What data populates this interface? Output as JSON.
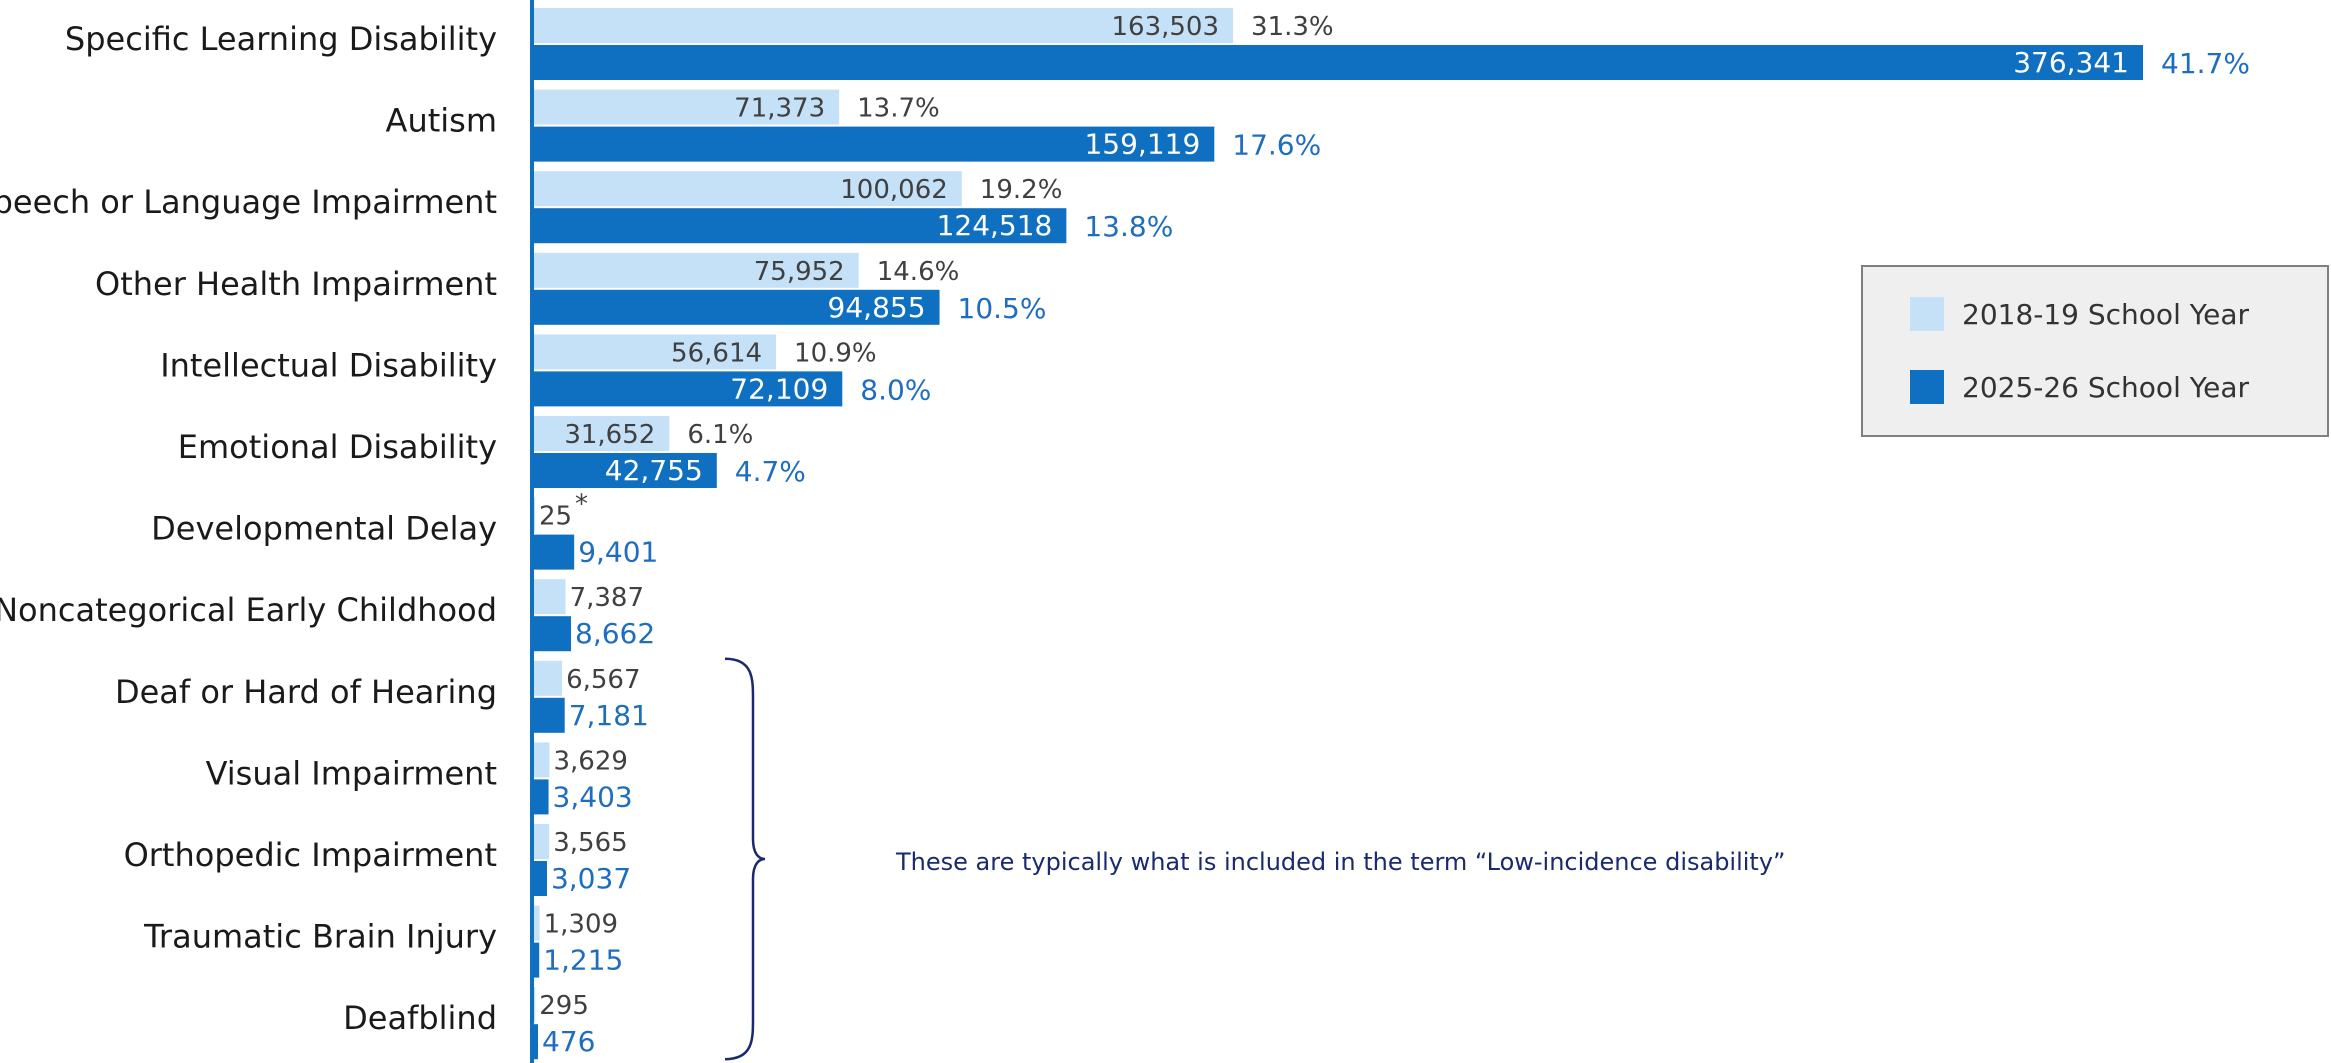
{
  "chart_data": {
    "type": "bar",
    "orientation": "horizontal",
    "categories": [
      "Specific Learning Disability",
      "Autism",
      "Speech or Language Impairment",
      "Other Health Impairment",
      "Intellectual Disability",
      "Emotional Disability",
      "Developmental Delay",
      "Noncategorical Early Childhood",
      "Deaf or Hard of Hearing",
      "Visual Impairment",
      "Orthopedic Impairment",
      "Traumatic Brain Injury",
      "Deafblind"
    ],
    "series": [
      {
        "name": "2018-19 School Year",
        "color": "#c5e1f8",
        "values": [
          163503,
          71373,
          100062,
          75952,
          56614,
          31652,
          25,
          7387,
          6567,
          3629,
          3565,
          1309,
          295
        ],
        "value_labels": [
          "163,503",
          "71,373",
          "100,062",
          "75,952",
          "56,614",
          "31,652",
          "25",
          "7,387",
          "6,567",
          "3,629",
          "3,565",
          "1,309",
          "295"
        ],
        "pct_labels": [
          "31.3%",
          "13.7%",
          "19.2%",
          "14.6%",
          "10.9%",
          "6.1%",
          "",
          "",
          "",
          "",
          "",
          "",
          ""
        ]
      },
      {
        "name": "2025-26 School Year",
        "color": "#0f6fc0",
        "values": [
          376341,
          159119,
          124518,
          94855,
          72109,
          42755,
          9401,
          8662,
          7181,
          3403,
          3037,
          1215,
          476
        ],
        "value_labels": [
          "376,341",
          "159,119",
          "124,518",
          "94,855",
          "72,109",
          "42,755",
          "9,401",
          "8,662",
          "7,181",
          "3,403",
          "3,037",
          "1,215",
          "476"
        ],
        "pct_labels": [
          "41.7%",
          "17.6%",
          "13.8%",
          "10.5%",
          "8.0%",
          "4.7%",
          "",
          "",
          "",
          "",
          "",
          "",
          ""
        ]
      }
    ],
    "footnote_marks": [
      "",
      "",
      "",
      "",
      "",
      "",
      "*",
      "",
      "",
      "",
      "",
      "",
      ""
    ],
    "annotation": {
      "text": "These are typically what is included in the term “Low-incidence disability”",
      "applies_to": [
        "Deaf or Hard of Hearing",
        "Visual Impairment",
        "Orthopedic Impairment",
        "Traumatic Brain Injury",
        "Deafblind"
      ],
      "color": "#1a2a6c"
    },
    "legend_position": "right",
    "grid": false,
    "axis_color": "#0f6fc0",
    "xlabel": "",
    "ylabel": ""
  }
}
